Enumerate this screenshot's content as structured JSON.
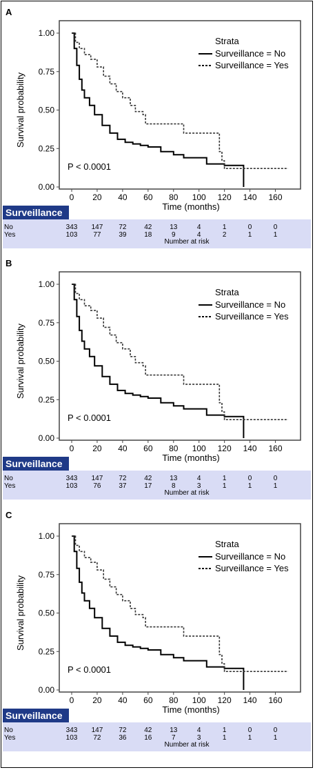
{
  "chart_data": [
    {
      "type": "line",
      "panel_label": "A",
      "ylabel": "Survival probability",
      "xlabel": "Time (months)",
      "xlim": [
        0,
        170
      ],
      "ylim": [
        0,
        1
      ],
      "x_ticks": [
        0,
        20,
        40,
        60,
        80,
        100,
        120,
        140,
        160
      ],
      "y_ticks": [
        "0.00",
        "0.25",
        "0.50",
        "0.75",
        "1.00"
      ],
      "legend_title": "Strata",
      "legend_position": "top-right",
      "p_value": "P < 0.0001",
      "series": [
        {
          "name": "Surveillance = No",
          "style": "solid",
          "x": [
            0,
            2,
            4,
            6,
            8,
            10,
            14,
            18,
            24,
            30,
            36,
            42,
            48,
            54,
            60,
            70,
            80,
            88,
            96,
            106,
            106,
            120,
            135,
            135
          ],
          "y": [
            1.0,
            0.9,
            0.79,
            0.7,
            0.63,
            0.58,
            0.53,
            0.47,
            0.4,
            0.35,
            0.31,
            0.29,
            0.28,
            0.27,
            0.26,
            0.23,
            0.21,
            0.19,
            0.19,
            0.19,
            0.15,
            0.14,
            0.14,
            0.0
          ]
        },
        {
          "name": "Surveillance = Yes",
          "style": "dashed",
          "x": [
            0,
            3,
            6,
            10,
            15,
            20,
            25,
            30,
            35,
            40,
            46,
            50,
            56,
            58,
            66,
            88,
            96,
            116,
            118,
            120,
            170
          ],
          "y": [
            1.0,
            0.94,
            0.9,
            0.86,
            0.83,
            0.78,
            0.72,
            0.67,
            0.62,
            0.58,
            0.53,
            0.49,
            0.47,
            0.41,
            0.41,
            0.35,
            0.35,
            0.23,
            0.17,
            0.12,
            0.12
          ]
        }
      ],
      "risk_table": {
        "header": "Surveillance",
        "caption": "Number at risk",
        "rows": [
          {
            "label": "No",
            "values": [
              "343",
              "147",
              "72",
              "42",
              "13",
              "4",
              "1",
              "0",
              "0"
            ]
          },
          {
            "label": "Yes",
            "values": [
              "103",
              "77",
              "39",
              "18",
              "9",
              "4",
              "2",
              "1",
              "1"
            ]
          }
        ]
      }
    },
    {
      "type": "line",
      "panel_label": "B",
      "ylabel": "Survival probability",
      "xlabel": "Time (months)",
      "xlim": [
        0,
        170
      ],
      "ylim": [
        0,
        1
      ],
      "x_ticks": [
        0,
        20,
        40,
        60,
        80,
        100,
        120,
        140,
        160
      ],
      "y_ticks": [
        "0.00",
        "0.25",
        "0.50",
        "0.75",
        "1.00"
      ],
      "legend_title": "Strata",
      "legend_position": "top-right",
      "p_value": "P < 0.0001",
      "series": [
        {
          "name": "Surveillance = No",
          "style": "solid",
          "x": [
            0,
            2,
            4,
            6,
            8,
            10,
            14,
            18,
            24,
            30,
            36,
            42,
            48,
            54,
            60,
            70,
            80,
            88,
            96,
            106,
            106,
            120,
            135,
            135
          ],
          "y": [
            1.0,
            0.9,
            0.79,
            0.7,
            0.63,
            0.58,
            0.53,
            0.47,
            0.4,
            0.35,
            0.31,
            0.29,
            0.28,
            0.27,
            0.26,
            0.23,
            0.21,
            0.19,
            0.19,
            0.19,
            0.15,
            0.14,
            0.14,
            0.0
          ]
        },
        {
          "name": "Surveillance = Yes",
          "style": "dashed",
          "x": [
            0,
            3,
            6,
            10,
            15,
            20,
            25,
            30,
            35,
            40,
            46,
            50,
            56,
            58,
            66,
            88,
            96,
            116,
            118,
            120,
            170
          ],
          "y": [
            1.0,
            0.94,
            0.9,
            0.86,
            0.83,
            0.78,
            0.72,
            0.67,
            0.62,
            0.58,
            0.53,
            0.49,
            0.47,
            0.41,
            0.41,
            0.35,
            0.35,
            0.23,
            0.17,
            0.12,
            0.12
          ]
        }
      ],
      "risk_table": {
        "header": "Surveillance",
        "caption": "Number at risk",
        "rows": [
          {
            "label": "No",
            "values": [
              "343",
              "147",
              "72",
              "42",
              "13",
              "4",
              "1",
              "0",
              "0"
            ]
          },
          {
            "label": "Yes",
            "values": [
              "103",
              "76",
              "37",
              "17",
              "8",
              "3",
              "1",
              "1",
              "1"
            ]
          }
        ]
      }
    },
    {
      "type": "line",
      "panel_label": "C",
      "ylabel": "Survival probability",
      "xlabel": "Time (months)",
      "xlim": [
        0,
        170
      ],
      "ylim": [
        0,
        1
      ],
      "x_ticks": [
        0,
        20,
        40,
        60,
        80,
        100,
        120,
        140,
        160
      ],
      "y_ticks": [
        "0.00",
        "0.25",
        "0.50",
        "0.75",
        "1.00"
      ],
      "legend_title": "Strata",
      "legend_position": "top-right",
      "p_value": "P < 0.0001",
      "series": [
        {
          "name": "Surveillance = No",
          "style": "solid",
          "x": [
            0,
            2,
            4,
            6,
            8,
            10,
            14,
            18,
            24,
            30,
            36,
            42,
            48,
            54,
            60,
            70,
            80,
            88,
            96,
            106,
            106,
            120,
            135,
            135
          ],
          "y": [
            1.0,
            0.9,
            0.79,
            0.7,
            0.63,
            0.58,
            0.53,
            0.47,
            0.4,
            0.35,
            0.31,
            0.29,
            0.28,
            0.27,
            0.26,
            0.23,
            0.21,
            0.19,
            0.19,
            0.19,
            0.15,
            0.14,
            0.14,
            0.0
          ]
        },
        {
          "name": "Surveillance = Yes",
          "style": "dashed",
          "x": [
            0,
            3,
            6,
            10,
            15,
            20,
            25,
            30,
            35,
            40,
            46,
            50,
            56,
            58,
            66,
            88,
            96,
            116,
            118,
            120,
            170
          ],
          "y": [
            1.0,
            0.94,
            0.9,
            0.86,
            0.83,
            0.78,
            0.72,
            0.67,
            0.62,
            0.58,
            0.53,
            0.49,
            0.47,
            0.41,
            0.41,
            0.35,
            0.35,
            0.23,
            0.17,
            0.12,
            0.12
          ]
        }
      ],
      "risk_table": {
        "header": "Surveillance",
        "caption": "Number at risk",
        "rows": [
          {
            "label": "No",
            "values": [
              "343",
              "147",
              "72",
              "42",
              "13",
              "4",
              "1",
              "0",
              "0"
            ]
          },
          {
            "label": "Yes",
            "values": [
              "103",
              "72",
              "36",
              "16",
              "7",
              "3",
              "1",
              "1",
              "1"
            ]
          }
        ]
      }
    }
  ]
}
